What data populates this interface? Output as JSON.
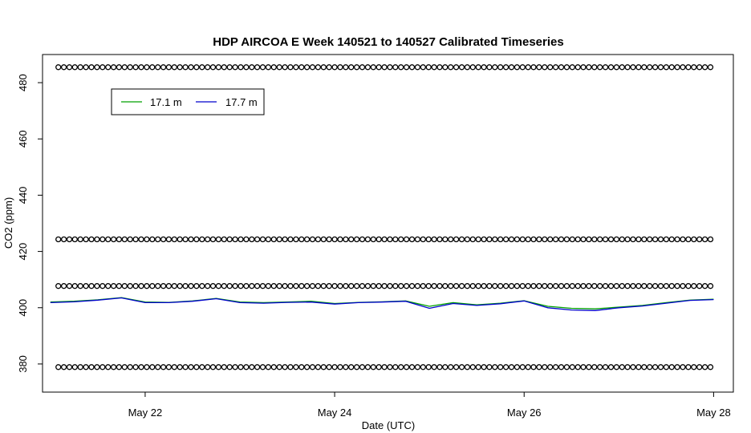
{
  "chart_data": {
    "type": "line",
    "title": "HDP AIRCOA E  Week 140521 to 140527  Calibrated Timeseries",
    "xlabel": "Date (UTC)",
    "ylabel": "CO2 (ppm)",
    "xlim": [
      "2014-05-20T22:00",
      "2014-05-28T05:00"
    ],
    "ylim": [
      370,
      490
    ],
    "x_ticks": [
      {
        "at": "2014-05-22T00:00",
        "label": "May 22"
      },
      {
        "at": "2014-05-24T00:00",
        "label": "May 24"
      },
      {
        "at": "2014-05-26T00:00",
        "label": "May 26"
      },
      {
        "at": "2014-05-28T00:00",
        "label": "May 28"
      }
    ],
    "y_ticks": [
      380,
      400,
      420,
      440,
      460,
      480
    ],
    "grid": false,
    "legend": {
      "placement": "top-left",
      "entries": [
        {
          "label": "17.1 m",
          "color": "#00a000"
        },
        {
          "label": "17.7 m",
          "color": "#0000cc"
        }
      ]
    },
    "calibration_levels": [
      485.5,
      424.3,
      407.7,
      378.9
    ],
    "series": [
      {
        "name": "17.1 m",
        "color": "#00a000",
        "x": [
          "2014-05-21T00:00",
          "2014-05-21T06:00",
          "2014-05-21T12:00",
          "2014-05-21T18:00",
          "2014-05-22T00:00",
          "2014-05-22T06:00",
          "2014-05-22T12:00",
          "2014-05-22T18:00",
          "2014-05-23T00:00",
          "2014-05-23T06:00",
          "2014-05-23T12:00",
          "2014-05-23T18:00",
          "2014-05-24T00:00",
          "2014-05-24T06:00",
          "2014-05-24T12:00",
          "2014-05-24T18:00",
          "2014-05-25T00:00",
          "2014-05-25T06:00",
          "2014-05-25T12:00",
          "2014-05-25T18:00",
          "2014-05-26T00:00",
          "2014-05-26T06:00",
          "2014-05-26T12:00",
          "2014-05-26T18:00",
          "2014-05-27T00:00",
          "2014-05-27T06:00",
          "2014-05-27T12:00",
          "2014-05-27T18:00",
          "2014-05-28T00:00"
        ],
        "y": [
          402.0,
          402.3,
          402.8,
          403.6,
          402.0,
          401.9,
          402.4,
          403.3,
          402.0,
          401.8,
          402.0,
          402.3,
          401.5,
          401.9,
          402.1,
          402.4,
          400.5,
          401.8,
          401.0,
          401.6,
          402.5,
          400.5,
          399.8,
          399.6,
          400.2,
          400.8,
          401.8,
          402.7,
          403.0
        ]
      },
      {
        "name": "17.7 m",
        "color": "#0000cc",
        "x": [
          "2014-05-21T00:00",
          "2014-05-21T06:00",
          "2014-05-21T12:00",
          "2014-05-21T18:00",
          "2014-05-22T00:00",
          "2014-05-22T06:00",
          "2014-05-22T12:00",
          "2014-05-22T18:00",
          "2014-05-23T00:00",
          "2014-05-23T06:00",
          "2014-05-23T12:00",
          "2014-05-23T18:00",
          "2014-05-24T00:00",
          "2014-05-24T06:00",
          "2014-05-24T12:00",
          "2014-05-24T18:00",
          "2014-05-25T00:00",
          "2014-05-25T06:00",
          "2014-05-25T12:00",
          "2014-05-25T18:00",
          "2014-05-26T00:00",
          "2014-05-26T06:00",
          "2014-05-26T12:00",
          "2014-05-26T18:00",
          "2014-05-27T00:00",
          "2014-05-27T06:00",
          "2014-05-27T12:00",
          "2014-05-27T18:00",
          "2014-05-28T00:00"
        ],
        "y": [
          401.8,
          402.1,
          402.7,
          403.5,
          401.8,
          401.8,
          402.3,
          403.2,
          401.8,
          401.6,
          401.9,
          402.0,
          401.3,
          401.8,
          402.0,
          402.3,
          399.8,
          401.5,
          400.8,
          401.4,
          402.4,
          400.0,
          399.2,
          399.0,
          400.0,
          400.6,
          401.6,
          402.6,
          402.9
        ]
      }
    ]
  }
}
